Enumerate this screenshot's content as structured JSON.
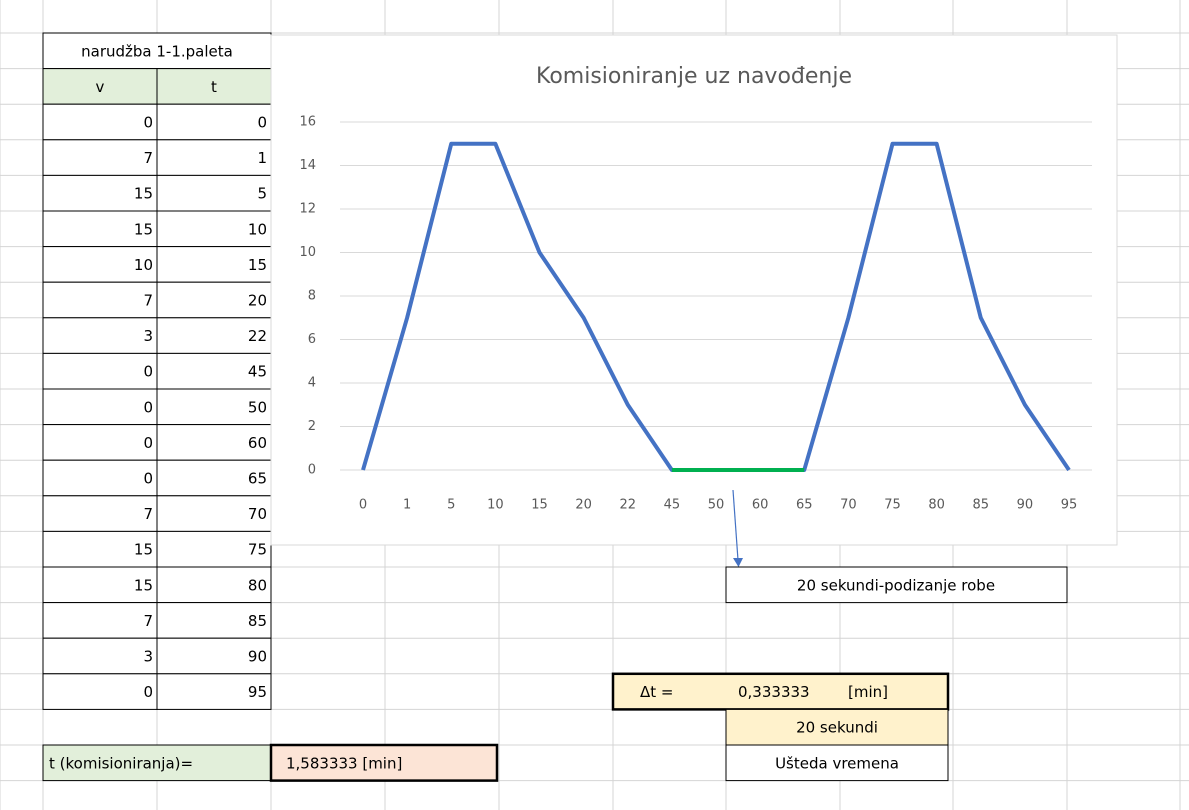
{
  "table": {
    "title": "narudžba 1-1.paleta",
    "header": [
      "v",
      "t"
    ],
    "rows": [
      [
        0,
        0
      ],
      [
        7,
        1
      ],
      [
        15,
        5
      ],
      [
        15,
        10
      ],
      [
        10,
        15
      ],
      [
        7,
        20
      ],
      [
        3,
        22
      ],
      [
        0,
        45
      ],
      [
        0,
        50
      ],
      [
        0,
        60
      ],
      [
        0,
        65
      ],
      [
        7,
        70
      ],
      [
        15,
        75
      ],
      [
        15,
        80
      ],
      [
        7,
        85
      ],
      [
        3,
        90
      ],
      [
        0,
        95
      ]
    ]
  },
  "chart_data": {
    "type": "line",
    "title": "Komisioniranje uz navođenje",
    "categories": [
      0,
      1,
      5,
      10,
      15,
      20,
      22,
      45,
      50,
      60,
      65,
      70,
      75,
      80,
      85,
      90,
      95
    ],
    "series": [
      {
        "color": "#4472c4",
        "values": [
          0,
          7,
          15,
          15,
          10,
          7,
          3,
          0,
          0,
          0,
          0,
          7,
          15,
          15,
          7,
          3,
          0
        ]
      },
      {
        "color": "#00b050",
        "values": [
          null,
          null,
          null,
          null,
          null,
          null,
          null,
          0,
          0,
          0,
          0,
          null,
          null,
          null,
          null,
          null,
          null
        ]
      }
    ],
    "ylim": [
      0,
      16
    ],
    "yticks": [
      0,
      2,
      4,
      6,
      8,
      10,
      12,
      14,
      16
    ],
    "grid": true,
    "annotation": "20 sekundi-podizanje robe"
  },
  "cells": {
    "delta_label": "Δt =",
    "delta_value": "0,333333",
    "delta_unit": "[min]",
    "seconds": "20 sekundi",
    "savings": "Ušteda vremena",
    "total_label": "t (komisioniranja)=",
    "total_value": "1,583333 [min]"
  }
}
